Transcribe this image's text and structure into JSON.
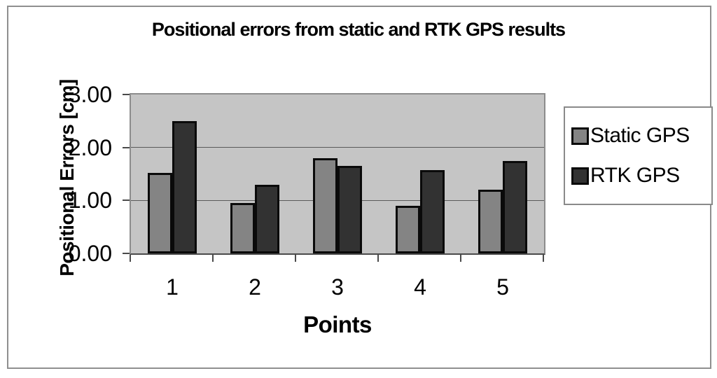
{
  "chart_data": {
    "type": "bar",
    "title": "Positional errors from static and RTK GPS results",
    "xlabel": "Points",
    "ylabel": "Positional Errors [cm]",
    "categories": [
      "1",
      "2",
      "3",
      "4",
      "5"
    ],
    "series": [
      {
        "name": "Static GPS",
        "color": "#848484",
        "values": [
          1.52,
          0.95,
          1.8,
          0.9,
          1.2
        ]
      },
      {
        "name": "RTK GPS",
        "color": "#323232",
        "values": [
          2.5,
          1.3,
          1.65,
          1.57,
          1.74
        ]
      }
    ],
    "ylim": [
      0,
      3
    ],
    "ytick_values": [
      0,
      1,
      2,
      3
    ],
    "ytick_labels": [
      "0.00",
      "1.00",
      "2.00",
      "3.00"
    ],
    "grid": true,
    "legend_position": "right",
    "plot_bg": "#c5c5c5",
    "bar_border_color": "#0a0a0a"
  }
}
